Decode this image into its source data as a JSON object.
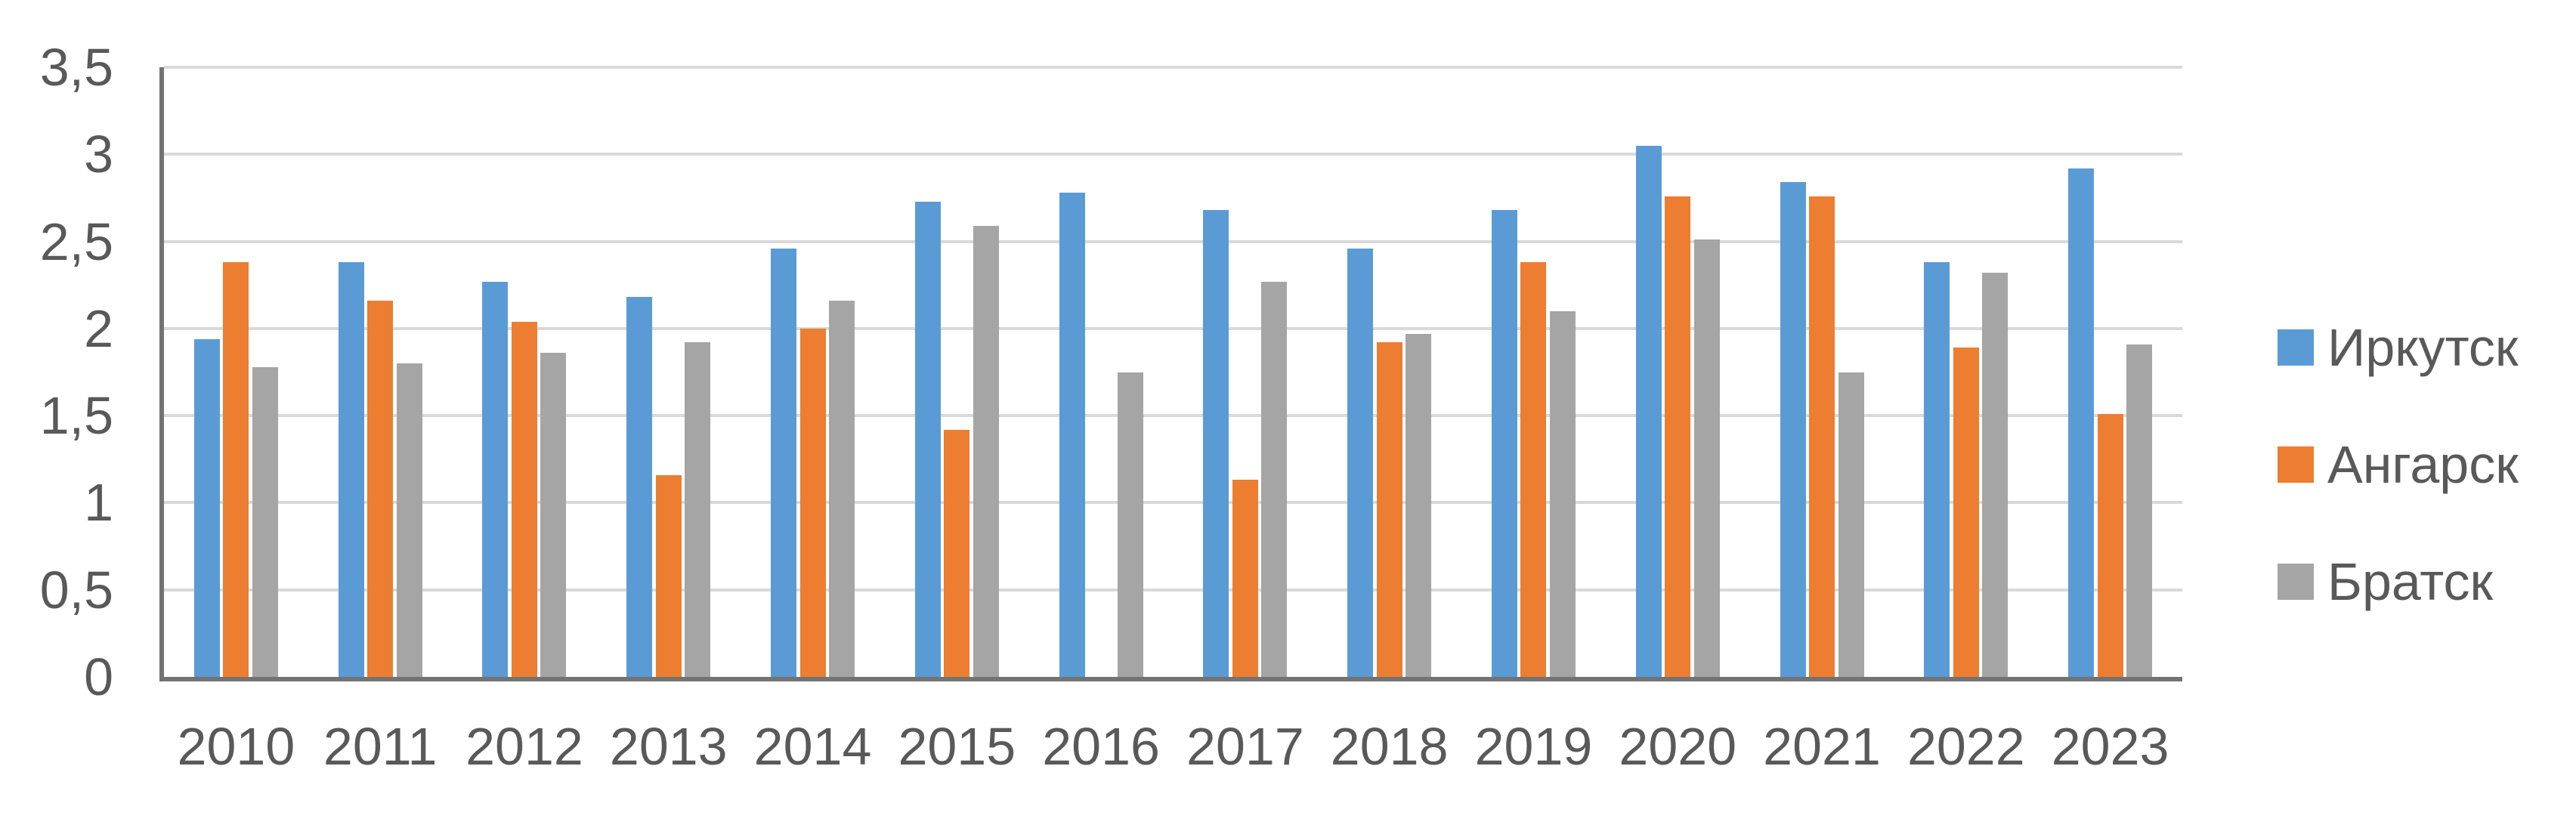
{
  "chart_data": {
    "type": "bar",
    "title": "",
    "categories": [
      "2010",
      "2011",
      "2012",
      "2013",
      "2014",
      "2015",
      "2016",
      "2017",
      "2018",
      "2019",
      "2020",
      "2021",
      "2022",
      "2023"
    ],
    "series": [
      {
        "name": "Иркутск",
        "color": "#5B9BD5",
        "values": [
          1.94,
          2.38,
          2.27,
          2.18,
          2.46,
          2.73,
          2.78,
          2.68,
          2.46,
          2.68,
          3.05,
          2.84,
          2.38,
          2.92
        ]
      },
      {
        "name": "Ангарск",
        "color": "#ED7D31",
        "values": [
          2.38,
          2.16,
          2.04,
          1.16,
          2.0,
          1.42,
          null,
          1.13,
          1.92,
          2.38,
          2.76,
          2.76,
          1.89,
          1.51
        ]
      },
      {
        "name": "Братск",
        "color": "#A5A5A5",
        "values": [
          1.78,
          1.8,
          1.86,
          1.92,
          2.16,
          2.59,
          1.75,
          2.27,
          1.97,
          2.1,
          2.51,
          1.75,
          2.32,
          1.91
        ]
      }
    ],
    "y_axis": {
      "min": 0,
      "max": 3.5,
      "step": 0.5,
      "tick_labels": [
        "0",
        "0,5",
        "1",
        "1,5",
        "2",
        "2,5",
        "3",
        "3,5"
      ]
    },
    "x_axis_label": "",
    "y_axis_label": "",
    "legend_position": "right",
    "grid": true
  },
  "styles": {
    "background": "#FFFFFF",
    "axis_color": "#737373",
    "grid_color": "#D9D9D9",
    "label_color": "#595959"
  }
}
